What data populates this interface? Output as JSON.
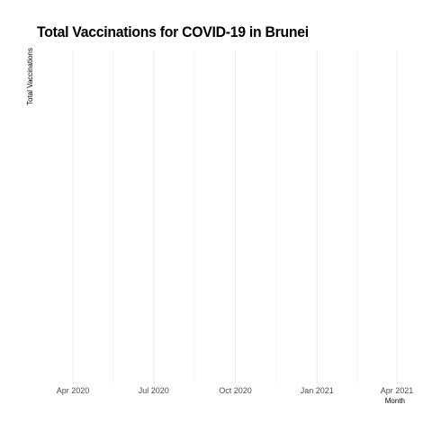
{
  "chart_data": {
    "type": "line",
    "title": "Total Vaccinations for COVID-19 in Brunei",
    "xlabel": "Month",
    "ylabel": "Total Vaccinations",
    "x_ticks": [
      "2020-04-01",
      "2020-07-01",
      "2020-10-01",
      "2021-01-01",
      "2021-04-01"
    ],
    "x_tick_labels": [
      "Apr 2020",
      "Jul 2020",
      "Oct 2020",
      "Jan 2021",
      "Apr 2021"
    ],
    "x_minor_ticks": [
      "2020-05-16",
      "2020-08-16",
      "2020-11-16",
      "2021-02-15"
    ],
    "xlim": [
      "2020-03-01",
      "2021-04-01"
    ],
    "series": [],
    "grid": true,
    "legend": "none",
    "colors": {
      "grid_major": "#ebebeb",
      "grid_minor": "#f2f2f2",
      "tick_text": "#4d4d4d"
    }
  }
}
